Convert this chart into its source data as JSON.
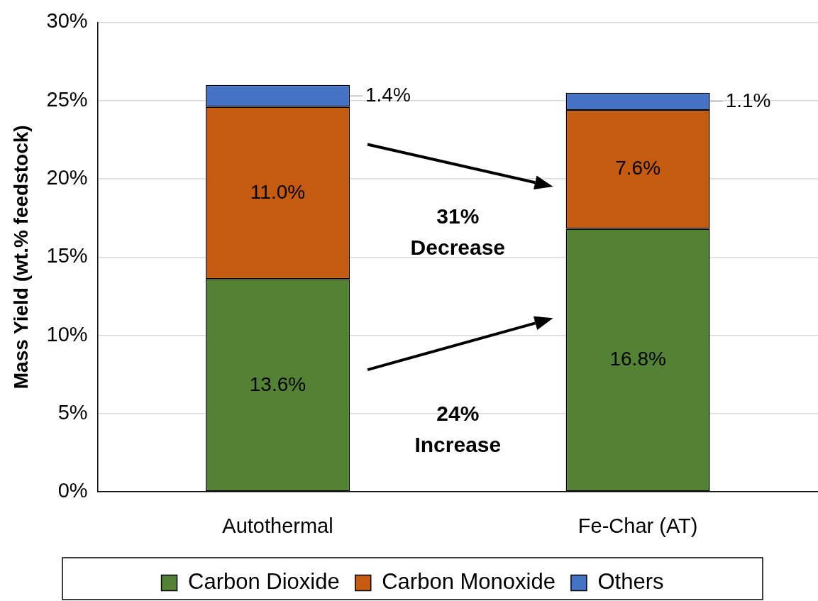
{
  "chart_data": {
    "type": "bar",
    "stacked": true,
    "ylabel": "Mass Yield (wt.% feedstock)",
    "categories": [
      "Autothermal",
      "Fe-Char (AT)"
    ],
    "series": [
      {
        "name": "Carbon Dioxide",
        "color": "#548235",
        "values": [
          13.6,
          16.8
        ],
        "value_labels": [
          "13.6%",
          "16.8%"
        ]
      },
      {
        "name": "Carbon Monoxide",
        "color": "#c55a11",
        "values": [
          11.0,
          7.6
        ],
        "value_labels": [
          "11.0%",
          "7.6%"
        ]
      },
      {
        "name": "Others",
        "color": "#4472c4",
        "values": [
          1.4,
          1.1
        ],
        "value_labels": [
          "1.4%",
          "1.1%"
        ]
      }
    ],
    "ylim": [
      0,
      30
    ],
    "yticks": [
      {
        "value": 0,
        "label": "0%"
      },
      {
        "value": 5,
        "label": "5%"
      },
      {
        "value": 10,
        "label": "10%"
      },
      {
        "value": 15,
        "label": "15%"
      },
      {
        "value": 20,
        "label": "20%"
      },
      {
        "value": 25,
        "label": "25%"
      },
      {
        "value": 30,
        "label": "30%"
      }
    ],
    "grid": "y",
    "legend": "bottom",
    "annotations": [
      "31%\nDecrease",
      "24%\nIncrease"
    ]
  }
}
